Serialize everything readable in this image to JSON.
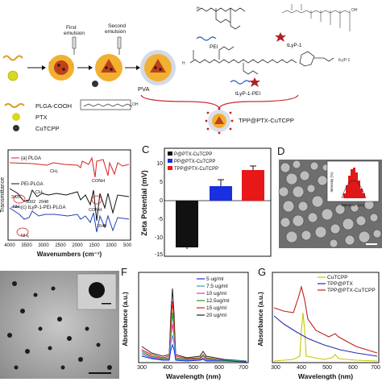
{
  "scheme": {
    "steps": [
      "First\nemulsion",
      "Second\nemulsion"
    ],
    "step1": "First",
    "step1b": "emulsion",
    "step2": "Second",
    "step2b": "emulsion",
    "pva": "PVA",
    "pei": "PEI",
    "tlyp1": "tLyP-1",
    "tlyp1_pei": "tLyP-1-PEI",
    "legend": [
      "PLGA-COOH",
      "PTX",
      "CuTCPP"
    ],
    "product": "TPP@PTX-CuTCPP"
  },
  "panelB": {
    "ylabel": "Transmittance",
    "xlabel": "Wavenumbers (cm⁻¹)",
    "xticks": [
      "4000",
      "3500",
      "3000",
      "2500",
      "2000",
      "1500",
      "1000",
      "500"
    ],
    "traces": [
      {
        "label": "(a) PLGA",
        "color": "#d62020"
      },
      {
        "label": "PEI-PLGA",
        "color": "#111111"
      },
      {
        "label": "(c) tLyP-1-PEI-PLGA",
        "color": "#1f3ec0"
      }
    ],
    "annotations": [
      "CH₂",
      "CONH",
      "3426",
      "3002",
      "2948",
      "CH₂",
      "1649",
      "NH₂",
      "CONH",
      "NH₂"
    ]
  },
  "panelC": {
    "letter": "C",
    "ylabel": "Zeta Potential (mV)",
    "yticks": [
      "10",
      "5",
      "0",
      "-5",
      "-10",
      "-15"
    ],
    "legend": [
      {
        "label": "P@PTX-CuTCPP",
        "color": "#111111"
      },
      {
        "label": "PP@PTX-CuTCPP",
        "color": "#1a2fe0"
      },
      {
        "label": "TPP@PTX-CuTCPP",
        "color": "#e81818"
      }
    ]
  },
  "panelD": {
    "letter": "D",
    "inset_ylabel": "Intensity (%)",
    "inset_xlabel": "Diameter (nm)"
  },
  "panelF": {
    "letter": "F",
    "ylabel": "Absorbance (a.u.)",
    "xlabel": "Wavelength (nm)",
    "xticks": [
      "300",
      "400",
      "500",
      "600",
      "700"
    ],
    "legend": [
      {
        "label": "5 ug/ml",
        "color": "#1a2fe0"
      },
      {
        "label": "7.5 ug/ml",
        "color": "#30a0d0"
      },
      {
        "label": "10 ug/ml",
        "color": "#e040b0"
      },
      {
        "label": "12.5ug/ml",
        "color": "#20a020"
      },
      {
        "label": "15 ug/ml",
        "color": "#e81818"
      },
      {
        "label": "20 ug/ml",
        "color": "#222222"
      }
    ]
  },
  "panelG": {
    "letter": "G",
    "ylabel": "Absorbance (a.u.)",
    "xlabel": "Wavelength (nm)",
    "xticks": [
      "300",
      "400",
      "500",
      "600",
      "700"
    ],
    "legend": [
      {
        "label": "CuTCPP",
        "color": "#c8c800"
      },
      {
        "label": "TPP@PTX",
        "color": "#2a2ab0"
      },
      {
        "label": "TPP@PTX-CuTCPP",
        "color": "#c02020"
      }
    ]
  }
}
